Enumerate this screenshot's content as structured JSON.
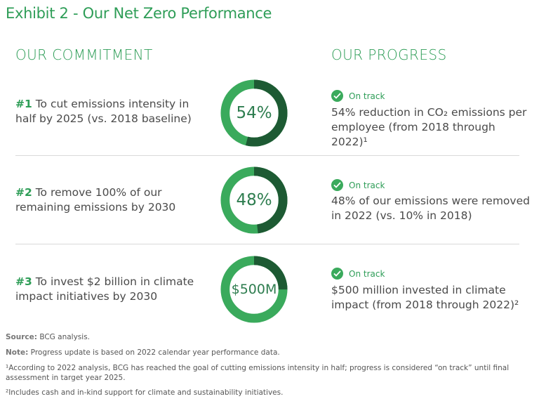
{
  "title": "Exhibit 2 - Our Net Zero Performance",
  "headers": {
    "commitment": "OUR COMMITMENT",
    "progress": "OUR PROGRESS"
  },
  "rows": [
    {
      "number": "#1",
      "commitment": " To cut emissions intensity in half by 2025 (vs. 2018 baseline)",
      "ring_value": "54%",
      "ring_fraction": 0.54,
      "status": "On track",
      "progress_text": "54% reduction in CO₂ emissions per employee (from 2018 through 2022)¹"
    },
    {
      "number": "#2",
      "commitment": " To remove 100% of our remaining emissions by 2030",
      "ring_value": "48%",
      "ring_fraction": 0.48,
      "status": "On track",
      "progress_text": "48% of our emissions were removed in 2022 (vs. 10% in 2018)"
    },
    {
      "number": "#3",
      "commitment": " To invest $2 billion in climate impact initiatives by 2030",
      "ring_value": "$500M",
      "ring_fraction": 0.25,
      "status": "On track",
      "progress_text": "$500 million invested in climate impact (from 2018 through 2022)²"
    }
  ],
  "footnotes": {
    "source_label": "Source:",
    "source": " BCG analysis.",
    "note_label": "Note:",
    "note": " Progress update is based on 2022 calendar year performance data.",
    "fn1": "¹According to 2022 analysis, BCG has reached the goal of cutting emissions intensity in half; progress is considered “on track” until final assessment in target year 2025.",
    "fn2": "²Includes cash and in-kind support for climate and sustainability initiatives."
  },
  "colors": {
    "ring_light": "#3aaa5c",
    "ring_dark": "#1d5a33",
    "accent": "#2e9d57"
  }
}
